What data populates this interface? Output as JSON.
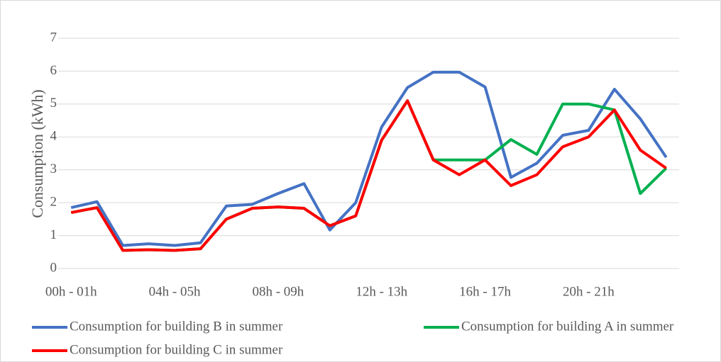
{
  "chart_data": {
    "type": "line",
    "y_label": "Consumption (kWh)",
    "categories": [
      "00h - 01h",
      null,
      null,
      null,
      "04h - 05h",
      null,
      null,
      null,
      "08h - 09h",
      null,
      null,
      null,
      "12h - 13h",
      null,
      null,
      null,
      "16h - 17h",
      null,
      null,
      null,
      "20h - 21h",
      null,
      null,
      null
    ],
    "series": [
      {
        "name": "Consumption for building B in summer",
        "color": "#4472c4",
        "values": [
          1.85,
          2.03,
          0.7,
          0.75,
          0.7,
          0.78,
          1.9,
          1.95,
          2.28,
          2.58,
          1.17,
          2.0,
          4.3,
          5.5,
          5.97,
          5.97,
          5.52,
          2.77,
          3.2,
          4.05,
          4.2,
          5.45,
          4.55,
          3.38
        ]
      },
      {
        "name": "Consumption for building A in summer",
        "color": "#00b050",
        "values": [
          1.7,
          1.85,
          0.55,
          0.57,
          0.55,
          0.6,
          1.5,
          1.83,
          1.87,
          1.83,
          1.3,
          1.6,
          3.9,
          5.1,
          3.3,
          3.3,
          3.3,
          3.92,
          3.47,
          5.0,
          5.0,
          4.82,
          2.28,
          3.05
        ]
      },
      {
        "name": "Consumption for building C in summer",
        "color": "#ff0000",
        "values": [
          1.7,
          1.85,
          0.55,
          0.57,
          0.55,
          0.6,
          1.5,
          1.83,
          1.87,
          1.83,
          1.3,
          1.6,
          3.9,
          5.1,
          3.3,
          2.85,
          3.3,
          2.52,
          2.85,
          3.7,
          4.0,
          4.82,
          3.6,
          3.05
        ]
      }
    ],
    "ylim": [
      0,
      7
    ],
    "yticks": [
      0,
      1,
      2,
      3,
      4,
      5,
      6,
      7
    ],
    "grid": true,
    "legend": "bottom"
  }
}
